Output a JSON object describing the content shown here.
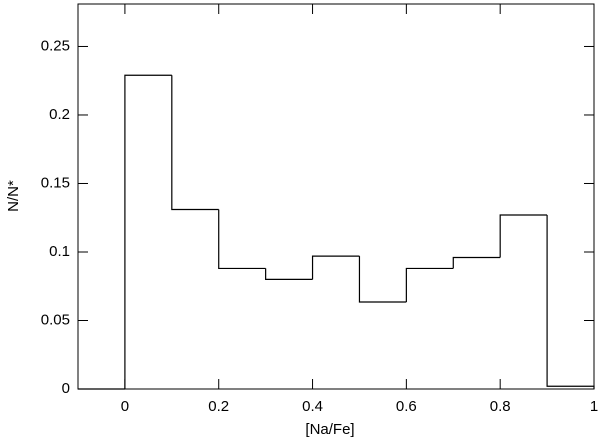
{
  "chart_data": {
    "type": "histogram",
    "x_label": "[Na/Fe]",
    "y_label": "N/N*",
    "bins": [
      -0.1,
      0,
      0.1,
      0.2,
      0.3,
      0.4,
      0.5,
      0.6,
      0.7,
      0.8,
      0.9,
      1.0
    ],
    "counts": [
      0,
      0.229,
      0.131,
      0.088,
      0.08,
      0.097,
      0.0635,
      0.088,
      0.096,
      0.127,
      0.002
    ],
    "color": "#000000",
    "xlim": [
      -0.1,
      1
    ],
    "xticks": [
      0,
      0.2,
      0.4,
      0.6,
      0.8,
      1
    ],
    "ylim": [
      0,
      0.281
    ],
    "yticks": [
      0,
      0.05,
      0.1,
      0.15,
      0.2,
      0.25
    ]
  }
}
